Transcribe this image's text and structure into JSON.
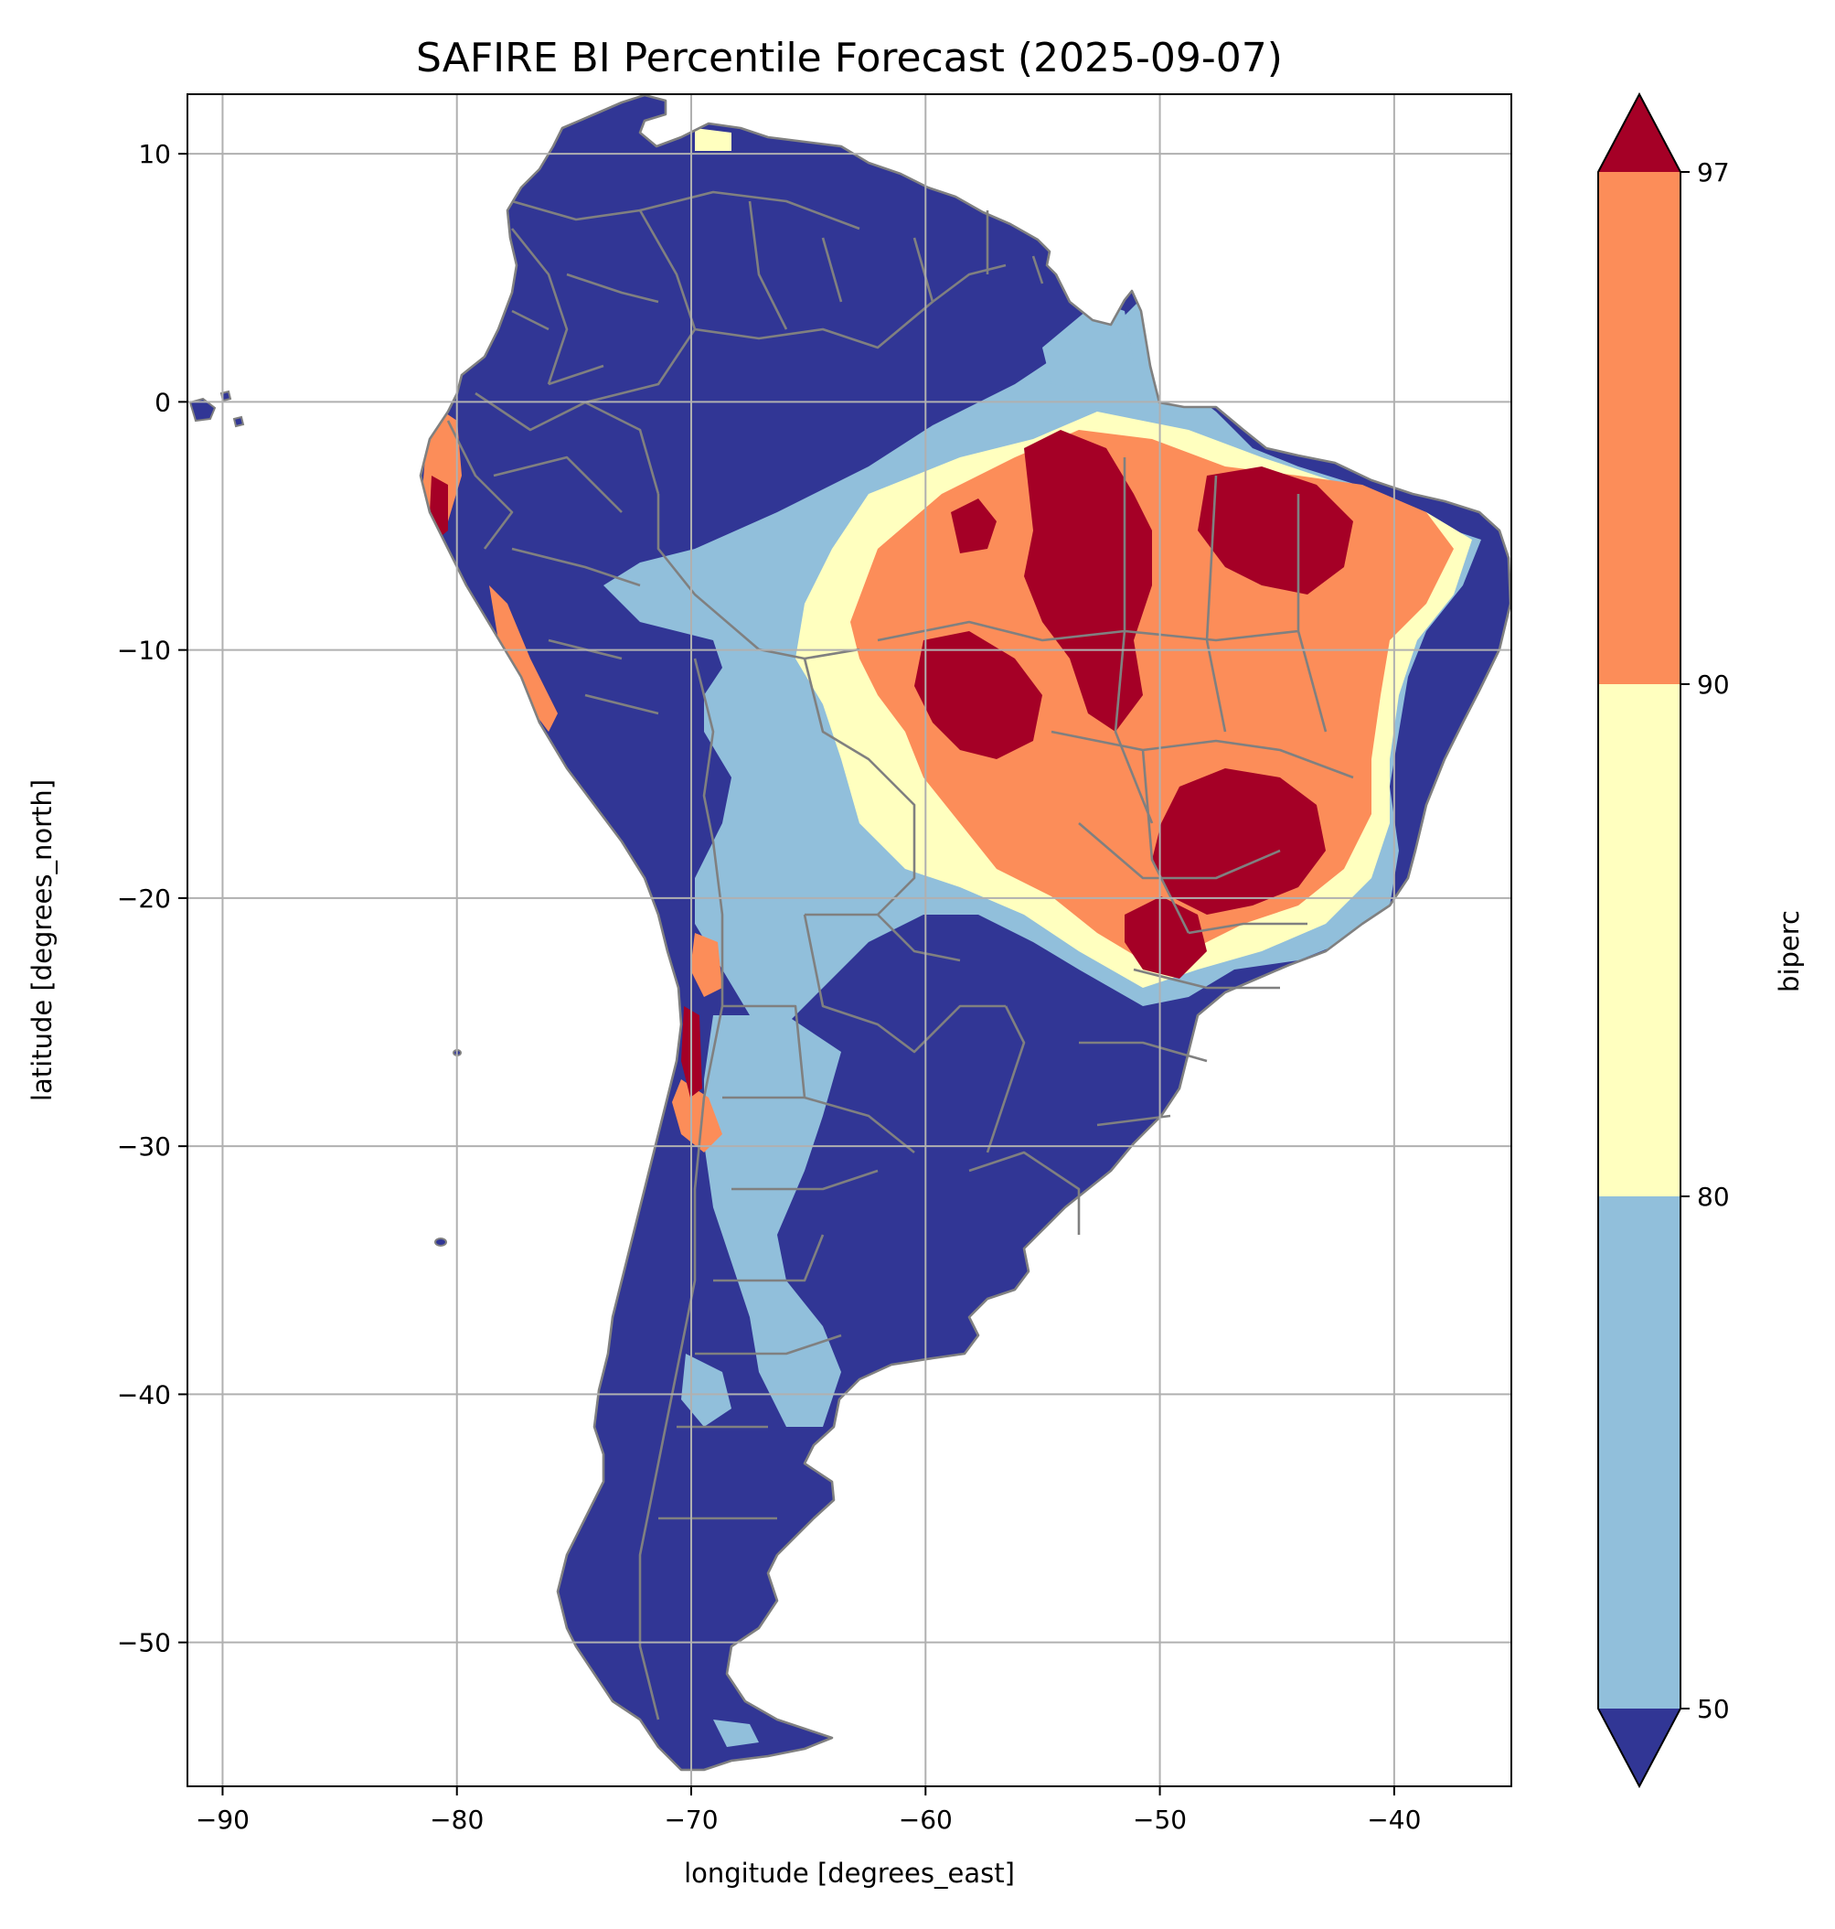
{
  "title": "SAFIRE BI Percentile Forecast (2025-09-07)",
  "x_axis": {
    "label": "longitude [degrees_east]",
    "range": [
      -91.5,
      -35
    ],
    "ticks": [
      -90,
      -80,
      -70,
      -60,
      -50,
      -40
    ],
    "tick_labels": [
      "−90",
      "−80",
      "−70",
      "−60",
      "−50",
      "−40"
    ]
  },
  "y_axis": {
    "label": "latitude [degrees_north]",
    "range": [
      -55.8,
      12.4
    ],
    "ticks": [
      10,
      0,
      -10,
      -20,
      -30,
      -40,
      -50
    ],
    "tick_labels": [
      "10",
      "0",
      "−10",
      "−20",
      "−30",
      "−40",
      "−50"
    ]
  },
  "grid": true,
  "colorbar": {
    "label": "biperc",
    "placement": "right",
    "extend": "both",
    "boundaries": [
      50,
      80,
      90,
      97
    ],
    "tick_labels": [
      "50",
      "80",
      "90",
      "97"
    ],
    "colors": {
      "under": "#313695",
      "50-80": "#91bfdb",
      "80-90": "#ffffbf",
      "90-97": "#fc8d59",
      "over": "#a50026"
    }
  },
  "map_style": {
    "ocean": "#ffffff",
    "land_low": "#313695",
    "border_color": "#808080",
    "grid_color": "#b0b0b0"
  }
}
